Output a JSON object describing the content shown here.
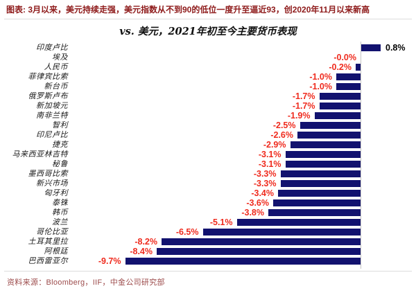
{
  "header": {
    "title": "图表: 3月以来，美元持续走强，美元指数从不到90的低位一度升至逼近93，创2020年11月以来新高"
  },
  "chart_data": {
    "type": "bar",
    "orientation": "horizontal",
    "title": "vs. 美元，2021年初至今主要货币表现",
    "unit": "%",
    "xlim": [
      -10.5,
      1.5
    ],
    "grid": false,
    "zero_axis": true,
    "categories": [
      "印度卢比",
      "埃及",
      "人民币",
      "菲律宾比索",
      "新台币",
      "俄罗斯卢布",
      "新加坡元",
      "南非兰特",
      "智利",
      "印尼卢比",
      "捷克",
      "马来西亚林吉特",
      "秘鲁",
      "墨西哥比索",
      "新兴市场",
      "匈牙利",
      "泰铢",
      "韩币",
      "波兰",
      "哥伦比亚",
      "土耳其里拉",
      "阿根廷",
      "巴西雷亚尔"
    ],
    "values": [
      0.8,
      -0.0,
      -0.2,
      -1.0,
      -1.0,
      -1.7,
      -1.7,
      -1.9,
      -2.5,
      -2.6,
      -2.9,
      -3.1,
      -3.1,
      -3.3,
      -3.3,
      -3.4,
      -3.6,
      -3.8,
      -5.1,
      -6.5,
      -8.2,
      -8.4,
      -9.7
    ],
    "value_labels": [
      "0.8%",
      "-0.0%",
      "-0.2%",
      "-1.0%",
      "-1.0%",
      "-1.7%",
      "-1.7%",
      "-1.9%",
      "-2.5%",
      "-2.6%",
      "-2.9%",
      "-3.1%",
      "-3.1%",
      "-3.3%",
      "-3.3%",
      "-3.4%",
      "-3.6%",
      "-3.8%",
      "-5.1%",
      "-6.5%",
      "-8.2%",
      "-8.4%",
      "-9.7%"
    ],
    "bar_color": "#12126F",
    "negative_label_color": "#EF2B1E",
    "positive_label_color": "#000000",
    "axis_line_color": "#C4C4C4"
  },
  "footer": {
    "source": "资料来源：Bloomberg，IIF，中金公司研究部"
  }
}
